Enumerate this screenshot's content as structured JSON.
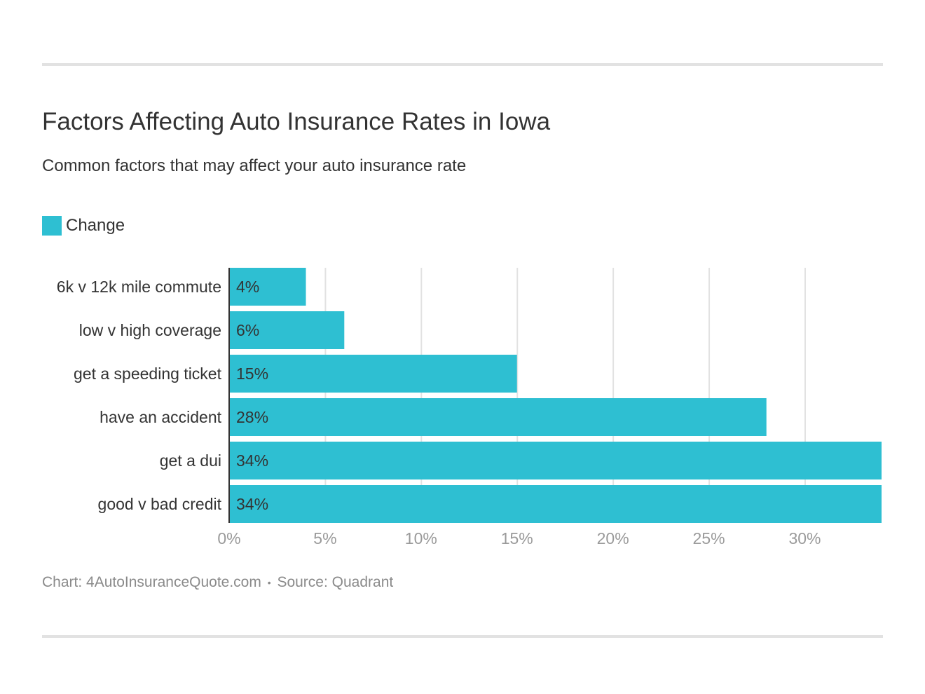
{
  "header": {
    "title": "Factors Affecting Auto Insurance Rates in Iowa",
    "subtitle": "Common factors that may affect your auto insurance rate"
  },
  "legend": {
    "label": "Change",
    "color": "#2ebfd2"
  },
  "chart_data": {
    "type": "bar",
    "orientation": "horizontal",
    "title": "Factors Affecting Auto Insurance Rates in Iowa",
    "subtitle": "Common factors that may affect your auto insurance rate",
    "categories": [
      "6k v 12k mile commute",
      "low v high coverage",
      "get a speeding ticket",
      "have an accident",
      "get a dui",
      "good v bad credit"
    ],
    "series": [
      {
        "name": "Change",
        "values": [
          4,
          6,
          15,
          28,
          34,
          34
        ],
        "data_labels": [
          "4%",
          "6%",
          "15%",
          "28%",
          "34%",
          "34%"
        ],
        "color": "#2ebfd2"
      }
    ],
    "x_ticks": [
      0,
      5,
      10,
      15,
      20,
      25,
      30
    ],
    "x_tick_labels": [
      "0%",
      "5%",
      "10%",
      "15%",
      "20%",
      "25%",
      "30%"
    ],
    "xlim": [
      0,
      34
    ],
    "grid": true,
    "legend_position": "top-left"
  },
  "footer": {
    "chart_credit": "Chart: 4AutoInsuranceQuote.com",
    "separator": "•",
    "source": "Source: Quadrant"
  }
}
